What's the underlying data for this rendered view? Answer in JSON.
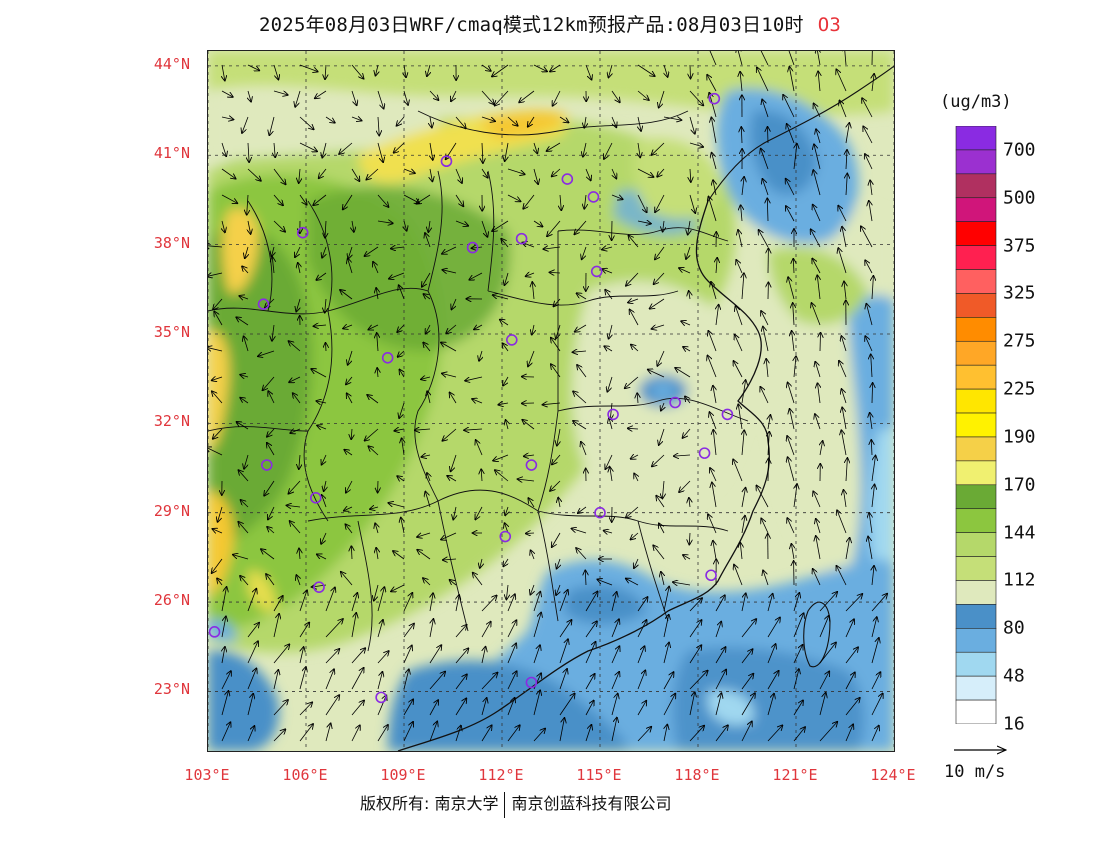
{
  "title": {
    "main": "2025年08月03日WRF/cmaq模式12km预报产品:08月03日10时",
    "species": "O3"
  },
  "axes": {
    "lat_ticks": [
      "44°N",
      "41°N",
      "38°N",
      "35°N",
      "32°N",
      "29°N",
      "26°N",
      "23°N"
    ],
    "lat_values": [
      44,
      41,
      38,
      35,
      32,
      29,
      26,
      23
    ],
    "lon_ticks": [
      "103°E",
      "106°E",
      "109°E",
      "112°E",
      "115°E",
      "118°E",
      "121°E",
      "124°E"
    ],
    "lon_values": [
      103,
      106,
      109,
      112,
      115,
      118,
      121,
      124
    ],
    "lat_range": [
      21,
      44.5
    ],
    "lon_range": [
      103,
      124
    ]
  },
  "colorbar": {
    "unit": "(ug/m3)",
    "labels": [
      "700",
      "500",
      "375",
      "325",
      "275",
      "225",
      "190",
      "170",
      "144",
      "112",
      "80",
      "48",
      "16"
    ],
    "colors": [
      "#8a2be2",
      "#9b30d0",
      "#b03060",
      "#d0157a",
      "#ff0000",
      "#ff2050",
      "#ff6060",
      "#f05a28",
      "#ff8c00",
      "#ffa726",
      "#ffc030",
      "#ffe600",
      "#fff200",
      "#f5d048",
      "#f0f070",
      "#6aaa35",
      "#8cc63f",
      "#b5d86a",
      "#c5df78",
      "#dfe9bd",
      "#4a90c8",
      "#6aaee0",
      "#a0d8f0",
      "#d6eefa",
      "#ffffff"
    ]
  },
  "wind_reference": {
    "label": "10 m/s"
  },
  "stations": [
    {
      "lon": 103.2,
      "lat": 25.0
    },
    {
      "lon": 104.7,
      "lat": 36.0
    },
    {
      "lon": 104.8,
      "lat": 30.6
    },
    {
      "lon": 105.9,
      "lat": 38.4
    },
    {
      "lon": 106.3,
      "lat": 29.5
    },
    {
      "lon": 106.4,
      "lat": 26.5
    },
    {
      "lon": 108.5,
      "lat": 34.2
    },
    {
      "lon": 108.3,
      "lat": 22.8
    },
    {
      "lon": 110.3,
      "lat": 40.8
    },
    {
      "lon": 111.1,
      "lat": 37.9
    },
    {
      "lon": 112.3,
      "lat": 34.8
    },
    {
      "lon": 112.1,
      "lat": 28.2
    },
    {
      "lon": 112.6,
      "lat": 38.2
    },
    {
      "lon": 112.9,
      "lat": 30.6
    },
    {
      "lon": 112.9,
      "lat": 23.3
    },
    {
      "lon": 114.0,
      "lat": 40.2
    },
    {
      "lon": 114.8,
      "lat": 39.6
    },
    {
      "lon": 114.9,
      "lat": 37.1
    },
    {
      "lon": 115.4,
      "lat": 32.3
    },
    {
      "lon": 115.0,
      "lat": 29.0
    },
    {
      "lon": 117.3,
      "lat": 32.7
    },
    {
      "lon": 118.2,
      "lat": 31.0
    },
    {
      "lon": 118.4,
      "lat": 26.9
    },
    {
      "lon": 118.9,
      "lat": 32.3
    },
    {
      "lon": 118.5,
      "lat": 42.9
    }
  ],
  "footer": {
    "copyright": "版权所有: 南京大学",
    "company": "南京创蓝科技有限公司"
  }
}
